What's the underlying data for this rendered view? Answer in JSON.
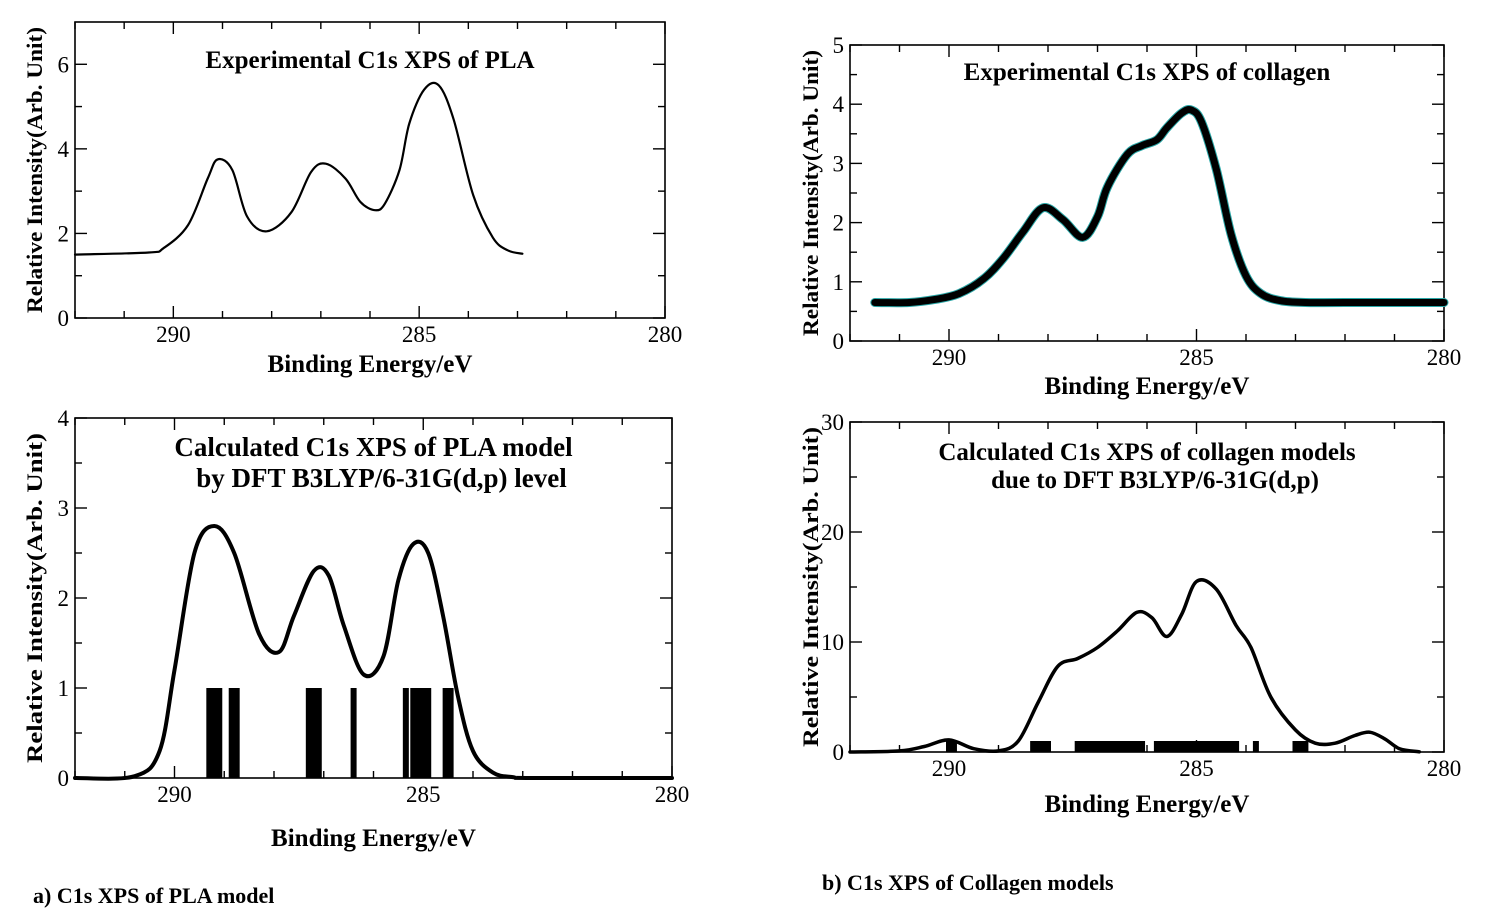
{
  "captions": {
    "a": "a) C1s XPS of PLA model",
    "b": "b) C1s XPS of Collagen models"
  },
  "colors": {
    "ink": "#000000",
    "trace_edge": "#2aa7a7",
    "background": "#ffffff"
  },
  "chart_data": [
    {
      "id": "pla-exp",
      "type": "line",
      "title": "Experimental C1s XPS of PLA",
      "xlabel": "Binding Energy/eV",
      "ylabel": "Relative Intensity(Arb. Unit)",
      "xlim": [
        292,
        280
      ],
      "ylim": [
        0,
        7
      ],
      "xticks": [
        290,
        285,
        280
      ],
      "yticks": [
        0,
        2,
        4,
        6
      ],
      "x_reversed": true,
      "series": [
        {
          "x": [
            292,
            290.5,
            290.2,
            289.7,
            289.3,
            289.1,
            288.8,
            288.5,
            288.1,
            287.6,
            287.2,
            286.9,
            286.5,
            286.2,
            285.9,
            285.7,
            285.4,
            285.2,
            284.9,
            284.6,
            284.3,
            283.9,
            283.5,
            283.2,
            282.9
          ],
          "y": [
            1.5,
            1.55,
            1.65,
            2.2,
            3.3,
            3.75,
            3.5,
            2.4,
            2.05,
            2.5,
            3.45,
            3.65,
            3.3,
            2.75,
            2.55,
            2.7,
            3.5,
            4.6,
            5.4,
            5.5,
            4.7,
            2.9,
            1.9,
            1.6,
            1.52
          ]
        }
      ]
    },
    {
      "id": "collagen-exp",
      "type": "line",
      "title": "Experimental C1s XPS of collagen",
      "xlabel": "Binding Energy/eV",
      "ylabel": "Relative Intensity(Arb. Unit)",
      "xlim": [
        292,
        280
      ],
      "ylim": [
        0,
        5
      ],
      "xticks": [
        290,
        285,
        280
      ],
      "yticks": [
        0,
        1,
        2,
        3,
        4,
        5
      ],
      "x_reversed": true,
      "series": [
        {
          "x": [
            291.5,
            290.8,
            290.3,
            289.8,
            289.3,
            288.9,
            288.5,
            288.1,
            287.7,
            287.3,
            287.0,
            286.8,
            286.4,
            286.1,
            285.8,
            285.6,
            285.3,
            285.1,
            284.9,
            284.6,
            284.3,
            284.0,
            283.7,
            283.3,
            282.8,
            282.0,
            280.0
          ],
          "y": [
            0.65,
            0.65,
            0.7,
            0.8,
            1.05,
            1.4,
            1.85,
            2.25,
            2.05,
            1.75,
            2.1,
            2.6,
            3.15,
            3.3,
            3.4,
            3.6,
            3.85,
            3.9,
            3.7,
            2.9,
            1.8,
            1.1,
            0.8,
            0.68,
            0.65,
            0.65,
            0.65
          ]
        }
      ]
    },
    {
      "id": "pla-calc",
      "type": "line",
      "title": "Calculated C1s XPS of PLA model",
      "subtitle": "by DFT B3LYP/6-31G(d,p) level",
      "xlabel": "Binding Energy/eV",
      "ylabel": "Relative Intensity(Arb. Unit)",
      "xlim": [
        292,
        280
      ],
      "ylim": [
        0,
        4
      ],
      "xticks": [
        290,
        285,
        280
      ],
      "yticks": [
        0,
        1,
        2,
        3,
        4
      ],
      "x_reversed": true,
      "series": [
        {
          "x": [
            292,
            290.8,
            290.3,
            290.0,
            289.6,
            289.2,
            288.8,
            288.3,
            287.9,
            287.6,
            287.2,
            286.9,
            286.6,
            286.2,
            285.8,
            285.5,
            285.2,
            284.9,
            284.6,
            284.3,
            284.0,
            283.6,
            283.2,
            282.8,
            280
          ],
          "y": [
            0,
            0.02,
            0.3,
            1.2,
            2.5,
            2.8,
            2.5,
            1.6,
            1.4,
            1.8,
            2.3,
            2.25,
            1.7,
            1.15,
            1.35,
            2.2,
            2.6,
            2.5,
            1.8,
            0.9,
            0.3,
            0.06,
            0.01,
            0,
            0
          ]
        }
      ],
      "stick_spectrum": {
        "value": 1,
        "positions": [
          289.3,
          289.2,
          289.1,
          288.85,
          288.75,
          287.3,
          287.2,
          287.1,
          286.4,
          285.35,
          285.2,
          285.1,
          285.0,
          284.9,
          284.55,
          284.45
        ]
      }
    },
    {
      "id": "collagen-calc",
      "type": "line",
      "title": "Calculated C1s XPS of collagen models",
      "subtitle": "due to DFT B3LYP/6-31G(d,p)",
      "xlabel": "Binding Energy/eV",
      "ylabel": "Relative Intensity(Arb. Unit)",
      "xlim": [
        292,
        280
      ],
      "ylim": [
        0,
        30
      ],
      "xticks": [
        290,
        285,
        280
      ],
      "yticks": [
        0,
        10,
        20,
        30
      ],
      "x_reversed": true,
      "series": [
        {
          "x": [
            292,
            291.0,
            290.5,
            290.0,
            289.5,
            289.0,
            288.6,
            288.2,
            287.8,
            287.4,
            287.0,
            286.6,
            286.2,
            285.9,
            285.6,
            285.3,
            285.0,
            284.6,
            284.2,
            283.9,
            283.5,
            283.0,
            282.6,
            282.2,
            281.8,
            281.5,
            281.2,
            280.9,
            280.5
          ],
          "y": [
            0,
            0.1,
            0.5,
            1.1,
            0.3,
            0.1,
            1.0,
            4.5,
            7.8,
            8.5,
            9.5,
            11.0,
            12.7,
            12.2,
            10.5,
            12.5,
            15.5,
            14.8,
            11.5,
            9.5,
            5.0,
            2.0,
            0.8,
            0.8,
            1.5,
            1.8,
            1.2,
            0.3,
            0.02
          ]
        }
      ],
      "stick_spectrum": {
        "value": 1,
        "positions": [
          290.0,
          289.9,
          288.3,
          288.2,
          288.1,
          288.0,
          287.4,
          287.3,
          287.2,
          287.1,
          287.0,
          286.9,
          286.8,
          286.7,
          286.6,
          286.5,
          286.4,
          286.3,
          286.2,
          286.1,
          285.8,
          285.7,
          285.6,
          285.5,
          285.4,
          285.3,
          285.2,
          285.1,
          285.0,
          284.9,
          284.8,
          284.7,
          284.6,
          284.5,
          284.4,
          284.3,
          284.2,
          283.8,
          283.0,
          282.9,
          282.8
        ]
      }
    }
  ]
}
